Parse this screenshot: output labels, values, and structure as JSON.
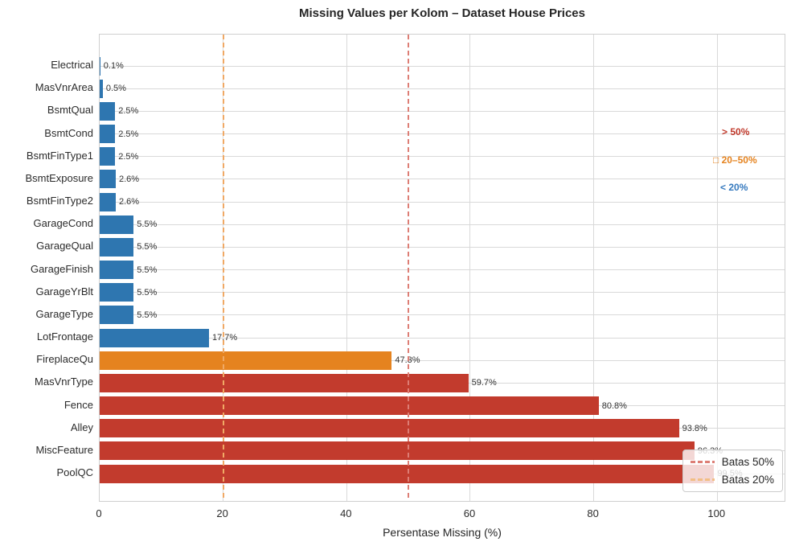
{
  "chart_data": {
    "type": "bar",
    "orientation": "horizontal",
    "title": "Missing Values per Kolom – Dataset House Prices",
    "xlabel": "Persentase Missing (%)",
    "xlim": [
      0,
      110.9
    ],
    "x_ticks": [
      "0",
      "20",
      "40",
      "60",
      "80",
      "100"
    ],
    "x_tick_values": [
      0,
      20,
      40,
      60,
      80,
      100
    ],
    "grid": true,
    "categories": [
      "Electrical",
      "MasVnrArea",
      "BsmtQual",
      "BsmtCond",
      "BsmtFinType1",
      "BsmtExposure",
      "BsmtFinType2",
      "GarageCond",
      "GarageQual",
      "GarageFinish",
      "GarageYrBlt",
      "GarageType",
      "LotFrontage",
      "FireplaceQu",
      "MasVnrType",
      "Fence",
      "Alley",
      "MiscFeature",
      "PoolQC"
    ],
    "values": [
      0.1,
      0.5,
      2.5,
      2.5,
      2.5,
      2.6,
      2.6,
      5.5,
      5.5,
      5.5,
      5.5,
      5.5,
      17.7,
      47.3,
      59.7,
      80.8,
      93.8,
      96.3,
      99.5
    ],
    "value_labels": [
      "0.1%",
      "0.5%",
      "2.5%",
      "2.5%",
      "2.5%",
      "2.6%",
      "2.6%",
      "5.5%",
      "5.5%",
      "5.5%",
      "5.5%",
      "5.5%",
      "17.7%",
      "47.3%",
      "59.7%",
      "80.8%",
      "93.8%",
      "96.3%",
      "99.5%"
    ],
    "color_rules": [
      {
        "label": "< 20%",
        "max": 20,
        "color": "#2E76B0"
      },
      {
        "label": "20–50%",
        "max": 50,
        "color": "#E5831F"
      },
      {
        "label": "> 50%",
        "max": 100,
        "color": "#C23B2D"
      }
    ],
    "thresholds": [
      {
        "value": 20,
        "color": "#F0A965",
        "legend_label": "Batas 20%"
      },
      {
        "value": 50,
        "color": "#DD7E75",
        "legend_label": "Batas 50%"
      }
    ],
    "annotations": [
      {
        "text": "> 50%",
        "color": "#C0392B"
      },
      {
        "text": "□ 20–50%",
        "color": "#E5831F"
      },
      {
        "text": "< 20%",
        "color": "#3579BE"
      }
    ],
    "legend": {
      "position": "lower right",
      "items": [
        {
          "label": "Batas 50%",
          "color": "#DD7E75",
          "style": "dashed"
        },
        {
          "label": "Batas 20%",
          "color": "#F2BE85",
          "style": "dashed"
        }
      ]
    }
  }
}
